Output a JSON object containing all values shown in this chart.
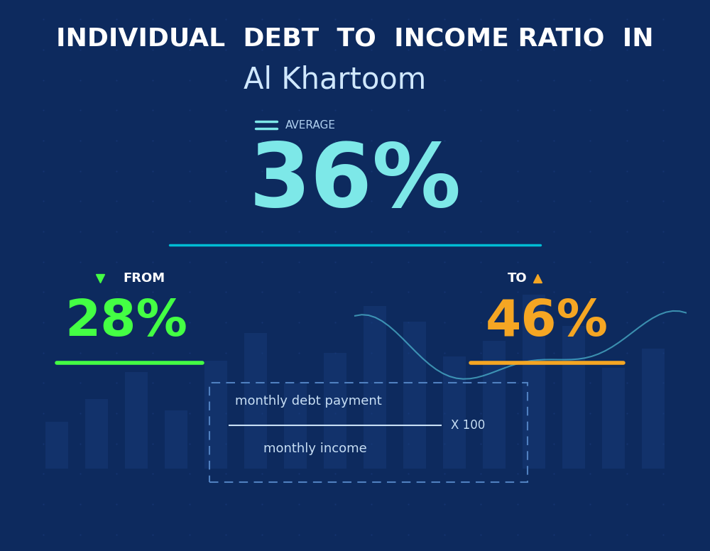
{
  "title_line1": "INDIVIDUAL  DEBT  TO  INCOME RATIO  IN",
  "title_line2": "Al Khartoom",
  "average_label": "AVERAGE",
  "average_value": "36%",
  "from_label": "FROM",
  "from_value": "28%",
  "to_label": "TO",
  "to_value": "46%",
  "formula_numerator": "monthly debt payment",
  "formula_denominator": "monthly income",
  "formula_multiplier": "X 100",
  "bg_color": "#0d2a5e",
  "title_color": "#ffffff",
  "subtitle_color": "#d0e8ff",
  "average_color": "#7de8e8",
  "average_label_color": "#b0d0f0",
  "from_color": "#44ff44",
  "to_color": "#f5a623",
  "formula_color": "#c8dff5",
  "separator_color": "#00bcd4",
  "arrow_down_color": "#44ff44",
  "arrow_up_color": "#f5a623",
  "dashed_box_color": "#5080c0",
  "bar_color": "#1a4080",
  "dot_color": "#1a3a7a",
  "line_color": "#5ad4e6"
}
